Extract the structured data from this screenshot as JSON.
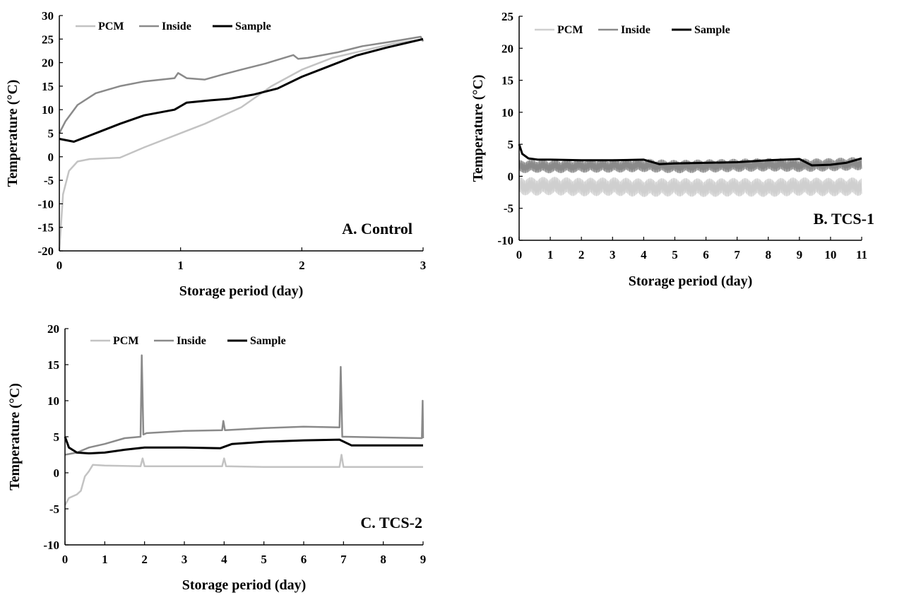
{
  "figure": {
    "panels": [
      {
        "id": "A",
        "label": "A. Control",
        "xlabel": "Storage period  (day)",
        "ylabel": "Temperature  (°C)",
        "legend": [
          "PCM",
          "Inside",
          "Sample"
        ]
      },
      {
        "id": "B",
        "label": "B. TCS-1",
        "xlabel": "Storage period  (day)",
        "ylabel": "Temperature  (°C)",
        "legend": [
          "PCM",
          "Inside",
          "Sample"
        ]
      },
      {
        "id": "C",
        "label": "C. TCS-2",
        "xlabel": "Storage period  (day)",
        "ylabel": "Temperature  (°C)",
        "legend": [
          "PCM",
          "Inside",
          "Sample"
        ]
      }
    ]
  },
  "chart_data": [
    {
      "type": "line",
      "title": "A. Control",
      "xlabel": "Storage period  (day)",
      "ylabel": "Temperature  (°C)",
      "xlim": [
        0,
        3
      ],
      "ylim": [
        -20,
        30
      ],
      "xticks": [
        0,
        1,
        2,
        3
      ],
      "yticks": [
        -20,
        -15,
        -10,
        -5,
        0,
        5,
        10,
        15,
        20,
        25,
        30
      ],
      "legend_position": "top-left",
      "grid": false,
      "series": [
        {
          "name": "PCM",
          "color": "#c3c3c3",
          "x": [
            0,
            0.03,
            0.08,
            0.15,
            0.25,
            0.5,
            0.7,
            0.95,
            1.2,
            1.5,
            1.75,
            2.0,
            2.25,
            2.5,
            2.75,
            3.0
          ],
          "y": [
            -20,
            -8,
            -3,
            -1,
            -0.5,
            -0.2,
            2,
            4.5,
            7,
            10.5,
            15,
            18.5,
            21,
            22.5,
            24,
            25
          ]
        },
        {
          "name": "Inside",
          "color": "#8a8a8a",
          "x": [
            0,
            0.05,
            0.15,
            0.3,
            0.5,
            0.7,
            0.95,
            0.98,
            1.05,
            1.2,
            1.35,
            1.5,
            1.7,
            1.93,
            1.97,
            2.05,
            2.3,
            2.5,
            2.75,
            2.98,
            3.0
          ],
          "y": [
            5,
            7.5,
            11,
            13.5,
            15,
            16,
            16.7,
            17.8,
            16.7,
            16.4,
            17.5,
            18.5,
            19.8,
            21.6,
            20.8,
            21,
            22.2,
            23.5,
            24.5,
            25.5,
            24.5
          ]
        },
        {
          "name": "Sample",
          "color": "#000000",
          "x": [
            0,
            0.06,
            0.12,
            0.2,
            0.35,
            0.5,
            0.7,
            0.95,
            1.05,
            1.25,
            1.4,
            1.6,
            1.8,
            2.0,
            2.2,
            2.45,
            2.7,
            3.0
          ],
          "y": [
            3.8,
            3.5,
            3.2,
            4,
            5.5,
            7,
            8.8,
            10,
            11.5,
            12,
            12.3,
            13.2,
            14.5,
            17,
            19,
            21.5,
            23.2,
            25
          ]
        }
      ]
    },
    {
      "type": "line",
      "title": "B. TCS-1",
      "xlabel": "Storage period  (day)",
      "ylabel": "Temperature  (°C)",
      "xlim": [
        0,
        11
      ],
      "ylim": [
        -10,
        25
      ],
      "xticks": [
        0,
        1,
        2,
        3,
        4,
        5,
        6,
        7,
        8,
        9,
        10,
        11
      ],
      "yticks": [
        -10,
        -5,
        0,
        5,
        10,
        15,
        20,
        25
      ],
      "legend_position": "top-left",
      "grid": false,
      "series": [
        {
          "name": "PCM",
          "color": "#cfcfcf",
          "x": [
            0,
            0.5,
            1,
            2,
            3,
            4,
            5,
            6,
            7,
            8,
            9,
            10,
            11
          ],
          "y": [
            -1.5,
            -1.6,
            -1.5,
            -1.7,
            -1.6,
            -1.8,
            -1.7,
            -1.8,
            -1.7,
            -1.8,
            -1.6,
            -1.7,
            -1.6
          ],
          "oscillation": 1.4
        },
        {
          "name": "Inside",
          "color": "#8a8a8a",
          "x": [
            0,
            0.5,
            1,
            2,
            3,
            4,
            5,
            6,
            7,
            8,
            9,
            10,
            11
          ],
          "y": [
            1.5,
            1.6,
            1.5,
            1.6,
            1.6,
            1.7,
            1.5,
            1.6,
            1.7,
            1.8,
            1.7,
            1.8,
            2
          ],
          "oscillation": 1.0
        },
        {
          "name": "Sample",
          "color": "#000000",
          "x": [
            0,
            0.1,
            0.3,
            0.6,
            1,
            2,
            3,
            4,
            4.5,
            5,
            6,
            7,
            8,
            9,
            9.4,
            10,
            10.5,
            11
          ],
          "y": [
            5,
            3.5,
            2.8,
            2.6,
            2.6,
            2.5,
            2.5,
            2.6,
            1.9,
            2.0,
            2.1,
            2.2,
            2.5,
            2.7,
            1.7,
            1.8,
            2.1,
            2.8
          ]
        }
      ]
    },
    {
      "type": "line",
      "title": "C. TCS-2",
      "xlabel": "Storage period  (day)",
      "ylabel": "Temperature  (°C)",
      "xlim": [
        0,
        9
      ],
      "ylim": [
        -10,
        20
      ],
      "xticks": [
        0,
        1,
        2,
        3,
        4,
        5,
        6,
        7,
        8,
        9
      ],
      "yticks": [
        -10,
        -5,
        0,
        5,
        10,
        15,
        20
      ],
      "legend_position": "top-left",
      "grid": false,
      "series": [
        {
          "name": "PCM",
          "color": "#c3c3c3",
          "x": [
            0,
            0.1,
            0.3,
            0.4,
            0.5,
            0.6,
            0.7,
            1,
            1.9,
            1.95,
            2.0,
            3,
            3.95,
            4.0,
            4.05,
            5,
            6,
            6.9,
            6.95,
            7.0,
            8,
            9
          ],
          "y": [
            -4.5,
            -3.5,
            -3,
            -2.5,
            -0.5,
            0.2,
            1.1,
            1,
            0.9,
            2,
            0.9,
            0.9,
            0.9,
            2,
            0.9,
            0.8,
            0.8,
            0.8,
            2.5,
            0.8,
            0.8,
            0.8
          ]
        },
        {
          "name": "Inside",
          "color": "#8a8a8a",
          "x": [
            0,
            0.3,
            0.6,
            1,
            1.5,
            1.9,
            1.93,
            1.97,
            2.05,
            3,
            3.95,
            3.98,
            4.02,
            5,
            6,
            6.9,
            6.93,
            6.97,
            7.05,
            8,
            8.97,
            8.99,
            9.0
          ],
          "y": [
            2.5,
            2.8,
            3.5,
            4,
            4.8,
            5,
            16.3,
            5.3,
            5.5,
            5.8,
            5.9,
            7.2,
            5.9,
            6.2,
            6.4,
            6.3,
            14.7,
            5,
            5,
            4.9,
            4.8,
            10,
            4.8
          ]
        },
        {
          "name": "Sample",
          "color": "#000000",
          "x": [
            0,
            0.1,
            0.3,
            0.6,
            1,
            1.5,
            2,
            3,
            3.9,
            4.2,
            5,
            6,
            6.9,
            7.2,
            8,
            9
          ],
          "y": [
            5,
            3.5,
            2.8,
            2.7,
            2.8,
            3.2,
            3.5,
            3.5,
            3.4,
            4,
            4.3,
            4.5,
            4.6,
            3.8,
            3.8,
            3.8
          ]
        }
      ]
    }
  ]
}
